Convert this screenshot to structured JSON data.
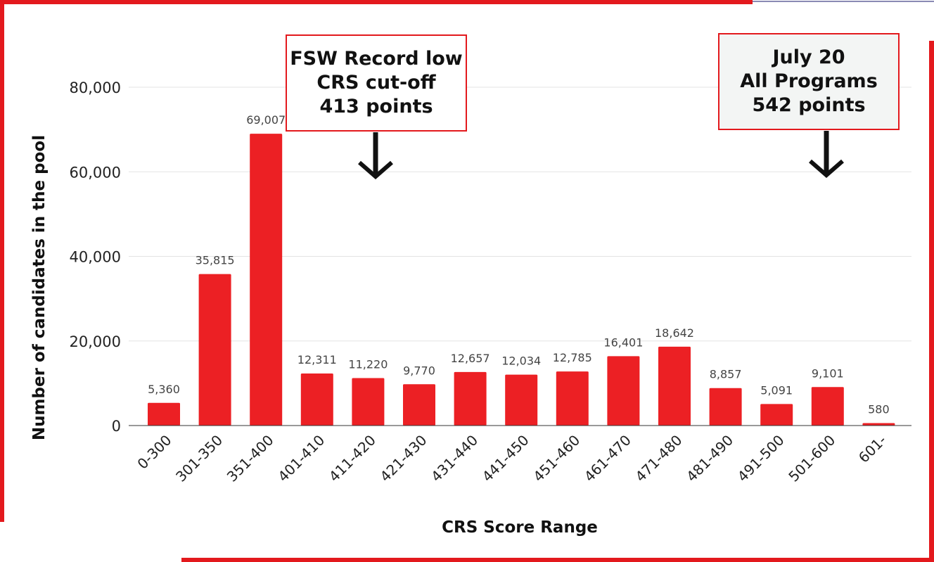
{
  "chart_data": {
    "type": "bar",
    "xlabel": "CRS Score Range",
    "ylabel": "Number of candidates in the pool",
    "categories": [
      "0-300",
      "301-350",
      "351-400",
      "401-410",
      "411-420",
      "421-430",
      "431-440",
      "441-450",
      "451-460",
      "461-470",
      "471-480",
      "481-490",
      "491-500",
      "501-600",
      "601-"
    ],
    "values": [
      5360,
      35815,
      69007,
      12311,
      11220,
      9770,
      12657,
      12034,
      12785,
      16401,
      18642,
      8857,
      5091,
      9101,
      580
    ],
    "value_labels": [
      "5,360",
      "35,815",
      "69,007",
      "12,311",
      "11,220",
      "9,770",
      "12,657",
      "12,034",
      "12,785",
      "16,401",
      "18,642",
      "8,857",
      "5,091",
      "9,101",
      "580"
    ],
    "ylim": [
      0,
      80000
    ],
    "yticks": [
      0,
      20000,
      40000,
      60000,
      80000
    ],
    "ytick_labels": [
      "0",
      "20,000",
      "40,000",
      "60,000",
      "80,000"
    ],
    "grid": true,
    "bar_color": "#ec2024",
    "annotations": [
      {
        "lines": [
          "FSW Record low",
          "CRS cut-off",
          "413 points"
        ],
        "points_to": "411-420"
      },
      {
        "lines": [
          "July 20",
          "All Programs",
          "542 points"
        ],
        "points_to": "501-600"
      }
    ]
  },
  "colors": {
    "accent": "#e3191d",
    "bar": "#ec2024",
    "grid": "#e3e3e3"
  }
}
